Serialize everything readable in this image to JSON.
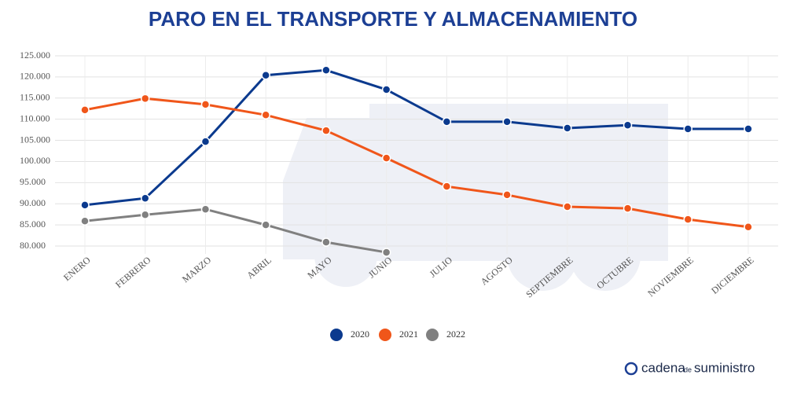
{
  "chart_data": {
    "type": "line",
    "title": "PARO EN EL TRANSPORTE Y ALMACENAMIENTO",
    "categories": [
      "ENERO",
      "FEBRERO",
      "MARZO",
      "ABRIL",
      "MAYO",
      "JUNIO",
      "JULIO",
      "AGOSTO",
      "SEPTIEMBRE",
      "OCTUBRE",
      "NOVIEMBRE",
      "DICIEMBRE"
    ],
    "series": [
      {
        "name": "2020",
        "color": "#0b3a8e",
        "values": [
          89700,
          91300,
          104700,
          120400,
          121600,
          117000,
          109400,
          109400,
          107900,
          108600,
          107700,
          107700
        ]
      },
      {
        "name": "2021",
        "color": "#f0561a",
        "values": [
          112200,
          114900,
          113500,
          111000,
          107300,
          100800,
          94100,
          92100,
          89300,
          88900,
          86300,
          84500
        ]
      },
      {
        "name": "2022",
        "color": "#808080",
        "values": [
          85900,
          87400,
          88700,
          85000,
          80900,
          78500,
          null,
          null,
          null,
          null,
          null,
          null
        ]
      }
    ],
    "ylim": [
      80000,
      125000
    ],
    "yticks": [
      {
        "value": 80000,
        "label": "80.000"
      },
      {
        "value": 85000,
        "label": "85.000"
      },
      {
        "value": 90000,
        "label": "90.000"
      },
      {
        "value": 95000,
        "label": "95.000"
      },
      {
        "value": 100000,
        "label": "100.000"
      },
      {
        "value": 105000,
        "label": "105.000"
      },
      {
        "value": 110000,
        "label": "110.000"
      },
      {
        "value": 115000,
        "label": "115.000"
      },
      {
        "value": 120000,
        "label": "120.000"
      },
      {
        "value": 125000,
        "label": "125.000"
      }
    ],
    "grid": true,
    "legend": "bottom"
  },
  "brand": {
    "main": "cadena",
    "small": "de",
    "rest": "suministro"
  }
}
